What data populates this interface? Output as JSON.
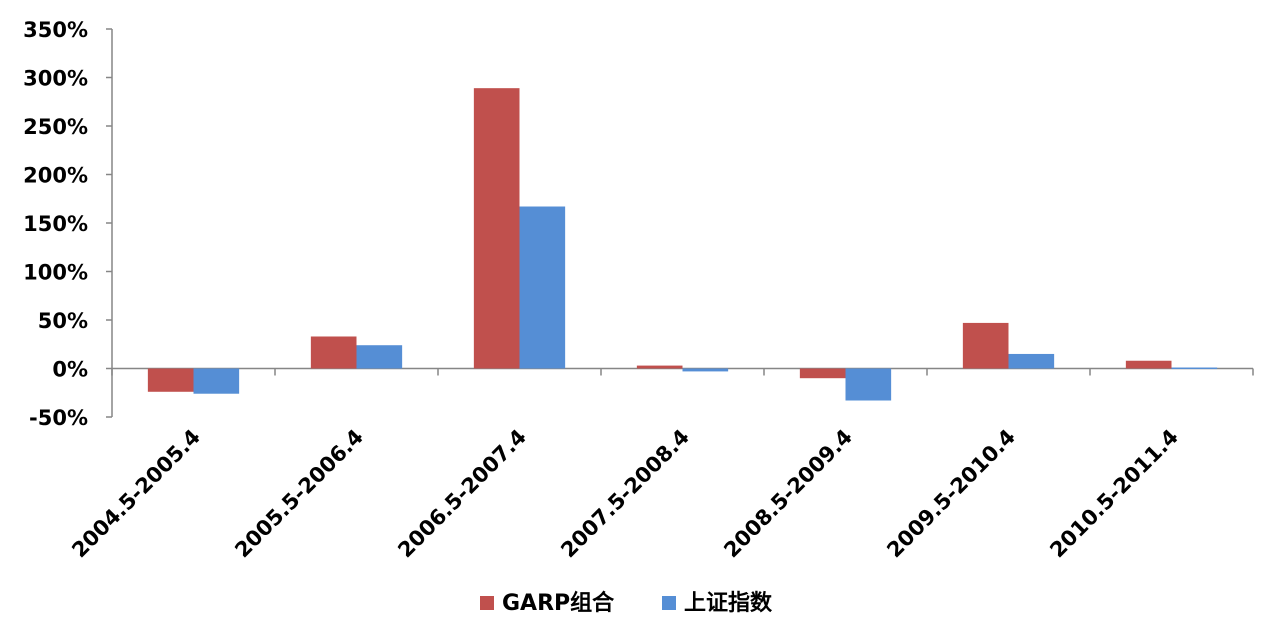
{
  "chart_data": {
    "type": "bar",
    "categories": [
      "2004.5-2005.4",
      "2005.5-2006.4",
      "2006.5-2007.4",
      "2007.5-2008.4",
      "2008.5-2009.4",
      "2009.5-2010.4",
      "2010.5-2011.4"
    ],
    "series": [
      {
        "name": "GARP组合",
        "color": "#c0504d",
        "values": [
          -24,
          33,
          289,
          3,
          -10,
          47,
          8
        ]
      },
      {
        "name": "上证指数",
        "color": "#558ed5",
        "values": [
          -26,
          24,
          167,
          -3,
          -33,
          15,
          1
        ]
      }
    ],
    "y_ticks": [
      "350%",
      "300%",
      "250%",
      "200%",
      "150%",
      "100%",
      "50%",
      "0%",
      "-50%"
    ],
    "ylim": [
      -50,
      350
    ],
    "y_unit": "%",
    "grid": false,
    "legend_position": "bottom"
  }
}
